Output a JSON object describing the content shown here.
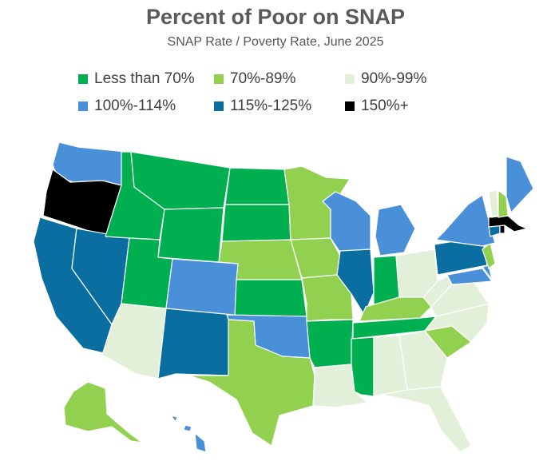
{
  "title": "Percent of Poor on SNAP",
  "subtitle": "SNAP Rate / Poverty Rate, June 2025",
  "legend": [
    {
      "label": "Less than 70%",
      "color": "#00b050"
    },
    {
      "label": "70%-89%",
      "color": "#92d050"
    },
    {
      "label": "90%-99%",
      "color": "#e2f0d9"
    },
    {
      "label": "100%-114%",
      "color": "#4a90d9"
    },
    {
      "label": "115%-125%",
      "color": "#0b6ea0"
    },
    {
      "label": "150%+",
      "color": "#000000"
    }
  ],
  "states": [
    {
      "id": "WA",
      "bucket": 3
    },
    {
      "id": "OR",
      "bucket": 5
    },
    {
      "id": "CA",
      "bucket": 4
    },
    {
      "id": "NV",
      "bucket": 4
    },
    {
      "id": "ID",
      "bucket": 0
    },
    {
      "id": "MT",
      "bucket": 0
    },
    {
      "id": "WY",
      "bucket": 0
    },
    {
      "id": "UT",
      "bucket": 0
    },
    {
      "id": "AZ",
      "bucket": 2
    },
    {
      "id": "CO",
      "bucket": 3
    },
    {
      "id": "NM",
      "bucket": 4
    },
    {
      "id": "ND",
      "bucket": 0
    },
    {
      "id": "SD",
      "bucket": 0
    },
    {
      "id": "NE",
      "bucket": 1
    },
    {
      "id": "KS",
      "bucket": 0
    },
    {
      "id": "OK",
      "bucket": 3
    },
    {
      "id": "TX",
      "bucket": 1
    },
    {
      "id": "MN",
      "bucket": 1
    },
    {
      "id": "IA",
      "bucket": 1
    },
    {
      "id": "MO",
      "bucket": 1
    },
    {
      "id": "AR",
      "bucket": 0
    },
    {
      "id": "LA",
      "bucket": 2
    },
    {
      "id": "WI",
      "bucket": 3
    },
    {
      "id": "IL",
      "bucket": 4
    },
    {
      "id": "MI",
      "bucket": 3
    },
    {
      "id": "IN",
      "bucket": 0
    },
    {
      "id": "OH",
      "bucket": 2
    },
    {
      "id": "KY",
      "bucket": 1
    },
    {
      "id": "TN",
      "bucket": 0
    },
    {
      "id": "MS",
      "bucket": 0
    },
    {
      "id": "AL",
      "bucket": 2
    },
    {
      "id": "GA",
      "bucket": 2
    },
    {
      "id": "FL",
      "bucket": 2
    },
    {
      "id": "SC",
      "bucket": 1
    },
    {
      "id": "NC",
      "bucket": 2
    },
    {
      "id": "VA",
      "bucket": 2
    },
    {
      "id": "WV",
      "bucket": 2
    },
    {
      "id": "PA",
      "bucket": 4
    },
    {
      "id": "NY",
      "bucket": 3
    },
    {
      "id": "NJ",
      "bucket": 1
    },
    {
      "id": "DE",
      "bucket": 3
    },
    {
      "id": "MD",
      "bucket": 3
    },
    {
      "id": "CT",
      "bucket": 4
    },
    {
      "id": "RI",
      "bucket": 5
    },
    {
      "id": "MA",
      "bucket": 5
    },
    {
      "id": "VT",
      "bucket": 2
    },
    {
      "id": "NH",
      "bucket": 1
    },
    {
      "id": "ME",
      "bucket": 3
    },
    {
      "id": "AK",
      "bucket": 1
    },
    {
      "id": "HI",
      "bucket": 3
    }
  ]
}
